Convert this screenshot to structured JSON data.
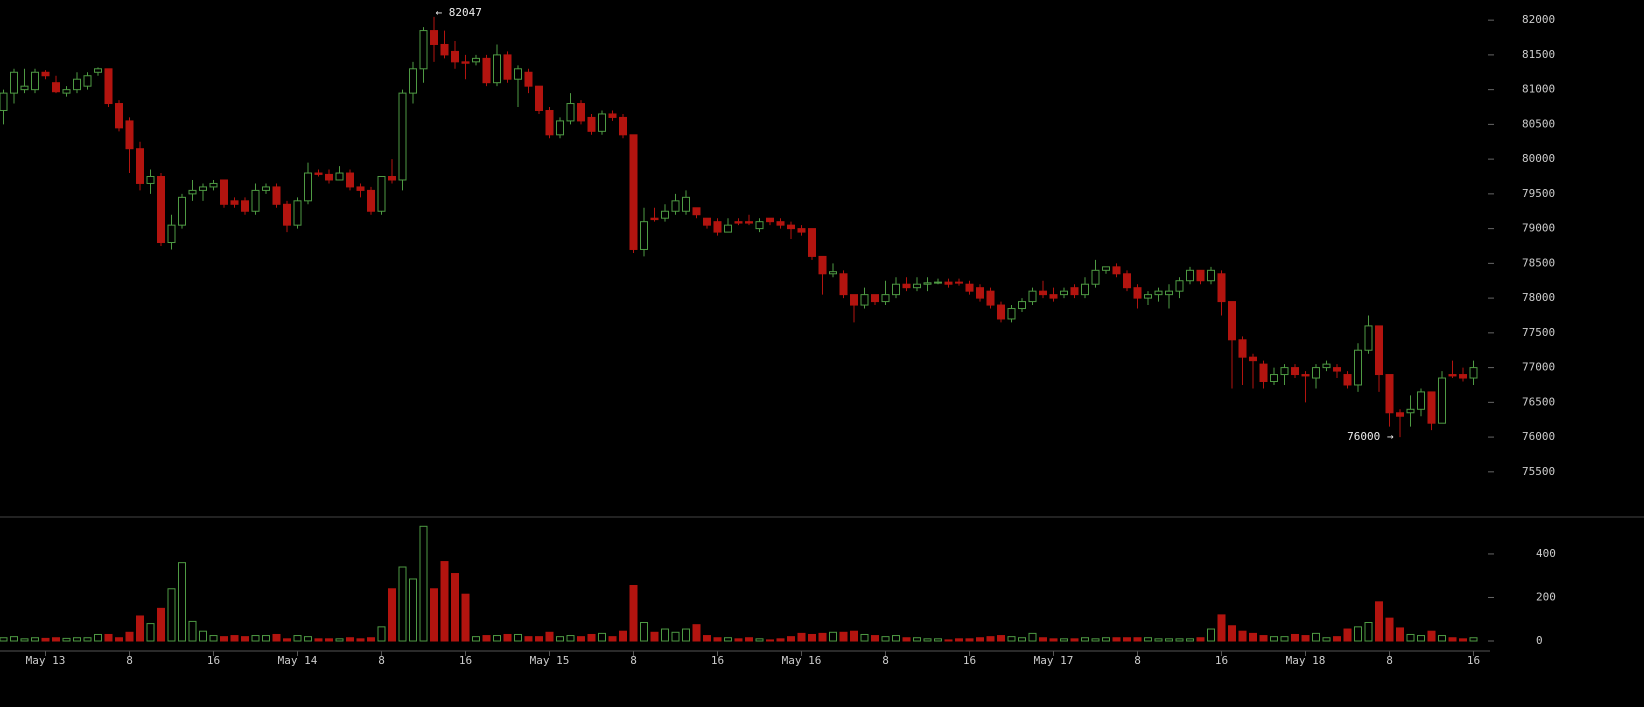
{
  "chart_data": {
    "type": "candlestick",
    "high_label": "← 82047",
    "low_label": "76000 →",
    "categories": [
      null,
      null,
      null,
      null,
      "May 13",
      null,
      null,
      null,
      null,
      null,
      null,
      null,
      "8",
      null,
      null,
      null,
      null,
      null,
      null,
      null,
      "16",
      null,
      null,
      null,
      null,
      null,
      null,
      null,
      "May 14",
      null,
      null,
      null,
      null,
      null,
      null,
      null,
      "8",
      null,
      null,
      null,
      null,
      null,
      null,
      null,
      "16",
      null,
      null,
      null,
      null,
      null,
      null,
      null,
      "May 15",
      null,
      null,
      null,
      null,
      null,
      null,
      null,
      "8",
      null,
      null,
      null,
      null,
      null,
      null,
      null,
      "16",
      null,
      null,
      null,
      null,
      null,
      null,
      null,
      "May 16",
      null,
      null,
      null,
      null,
      null,
      null,
      null,
      "8",
      null,
      null,
      null,
      null,
      null,
      null,
      null,
      "16",
      null,
      null,
      null,
      null,
      null,
      null,
      null,
      "May 17",
      null,
      null,
      null,
      null,
      null,
      null,
      null,
      "8",
      null,
      null,
      null,
      null,
      null,
      null,
      null,
      "16",
      null,
      null,
      null,
      null,
      null,
      null,
      null,
      "May 18",
      null,
      null,
      null,
      null,
      null,
      null,
      null,
      "8",
      null,
      null,
      null,
      null,
      null,
      null,
      null,
      "16"
    ],
    "open": [
      80700,
      80950,
      81000,
      81000,
      81250,
      81100,
      80950,
      81000,
      81050,
      81250,
      81300,
      80800,
      80550,
      80150,
      79650,
      79750,
      78800,
      79050,
      79500,
      79550,
      79600,
      79700,
      79400,
      79400,
      79250,
      79550,
      79600,
      79350,
      79050,
      79400,
      79800,
      79780,
      79700,
      79800,
      79600,
      79550,
      79250,
      79750,
      79700,
      80950,
      81300,
      81850,
      81650,
      81550,
      81400,
      81400,
      81450,
      81100,
      81500,
      81150,
      81250,
      81050,
      80700,
      80350,
      80550,
      80800,
      80600,
      80400,
      80650,
      80600,
      80350,
      78700,
      79150,
      79150,
      79250,
      79250,
      79300,
      79150,
      79100,
      78950,
      79100,
      79100,
      79000,
      79150,
      79100,
      79050,
      79000,
      79000,
      78600,
      78350,
      78350,
      78050,
      77900,
      78050,
      77950,
      78050,
      78200,
      78150,
      78200,
      78220,
      78230,
      78230,
      78200,
      78150,
      78100,
      77900,
      77700,
      77850,
      77950,
      78100,
      78050,
      78050,
      78150,
      78050,
      78200,
      78400,
      78450,
      78350,
      78150,
      78000,
      78050,
      78050,
      78100,
      78250,
      78400,
      78250,
      78350,
      77950,
      77400,
      77150,
      77050,
      76800,
      76900,
      77000,
      76900,
      76850,
      77000,
      77000,
      76900,
      76750,
      77250,
      77600,
      76900,
      76350,
      76350,
      76400,
      76650,
      76200,
      76900,
      76900,
      76850
    ],
    "high": [
      81000,
      81300,
      81300,
      81300,
      81280,
      81200,
      81050,
      81250,
      81250,
      81320,
      81300,
      80850,
      80600,
      80250,
      79850,
      79800,
      79200,
      79500,
      79700,
      79650,
      79700,
      79700,
      79450,
      79450,
      79650,
      79650,
      79650,
      79400,
      79450,
      79950,
      79850,
      79850,
      79900,
      79850,
      79650,
      79600,
      79750,
      80000,
      81000,
      81400,
      81900,
      82047,
      81850,
      81700,
      81500,
      81500,
      81500,
      81650,
      81550,
      81350,
      81300,
      81050,
      80750,
      80600,
      80950,
      80850,
      80650,
      80700,
      80700,
      80650,
      80350,
      79300,
      79300,
      79350,
      79500,
      79550,
      79300,
      79150,
      79150,
      79150,
      79150,
      79200,
      79150,
      79150,
      79150,
      79100,
      79050,
      79000,
      78600,
      78500,
      78400,
      78050,
      78150,
      78050,
      78250,
      78300,
      78300,
      78300,
      78300,
      78280,
      78280,
      78280,
      78250,
      78200,
      78150,
      77950,
      77900,
      78000,
      78150,
      78250,
      78150,
      78150,
      78200,
      78300,
      78550,
      78450,
      78500,
      78400,
      78200,
      78100,
      78150,
      78200,
      78300,
      78450,
      78400,
      78450,
      78400,
      77950,
      77450,
      77200,
      77100,
      77000,
      77050,
      77050,
      76950,
      77050,
      77100,
      77050,
      76950,
      77350,
      77750,
      77600,
      76900,
      76400,
      76600,
      76700,
      76650,
      76950,
      77100,
      77000,
      77100
    ],
    "low": [
      80500,
      80800,
      80950,
      80950,
      81150,
      80950,
      80900,
      80950,
      81000,
      81200,
      80750,
      80400,
      79800,
      79550,
      79500,
      78750,
      78700,
      79000,
      79400,
      79400,
      79550,
      79300,
      79300,
      79200,
      79200,
      79500,
      79300,
      78950,
      79000,
      79350,
      79750,
      79650,
      79700,
      79550,
      79450,
      79200,
      79200,
      79650,
      79550,
      80800,
      81100,
      81400,
      81450,
      81300,
      81150,
      81350,
      81050,
      81050,
      81100,
      80750,
      80950,
      80650,
      80300,
      80300,
      80500,
      80500,
      80350,
      80350,
      80550,
      80300,
      78650,
      78600,
      79100,
      79100,
      79200,
      79200,
      79150,
      79000,
      78900,
      78950,
      79050,
      79050,
      78950,
      79050,
      79000,
      78850,
      78900,
      78550,
      78050,
      78300,
      78000,
      77650,
      77850,
      77900,
      77900,
      78000,
      78100,
      78100,
      78100,
      78200,
      78150,
      78180,
      78050,
      77950,
      77850,
      77650,
      77650,
      77800,
      77900,
      78000,
      77950,
      78000,
      78000,
      78000,
      78150,
      78350,
      78300,
      78100,
      77850,
      77900,
      77950,
      77850,
      78000,
      78200,
      78200,
      78200,
      77750,
      76700,
      76750,
      76700,
      76700,
      76750,
      76750,
      76850,
      76500,
      76700,
      76950,
      76850,
      76700,
      76650,
      77200,
      76650,
      76150,
      76000,
      76150,
      76300,
      76100,
      76200,
      76850,
      76800,
      76750
    ],
    "close": [
      80950,
      81250,
      81050,
      81250,
      81200,
      80970,
      81000,
      81150,
      81200,
      81300,
      80800,
      80450,
      80150,
      79650,
      79750,
      78800,
      79050,
      79450,
      79550,
      79600,
      79650,
      79350,
      79350,
      79250,
      79550,
      79600,
      79350,
      79050,
      79400,
      79800,
      79780,
      79700,
      79800,
      79600,
      79550,
      79250,
      79750,
      79700,
      80950,
      81300,
      81850,
      81650,
      81500,
      81400,
      81380,
      81450,
      81100,
      81500,
      81150,
      81300,
      81050,
      80700,
      80350,
      80550,
      80800,
      80550,
      80400,
      80650,
      80600,
      80350,
      78700,
      79100,
      79130,
      79250,
      79400,
      79450,
      79200,
      79050,
      78950,
      79050,
      79080,
      79080,
      79100,
      79100,
      79050,
      79000,
      78950,
      78600,
      78350,
      78380,
      78050,
      77900,
      78050,
      77950,
      78050,
      78200,
      78150,
      78200,
      78220,
      78230,
      78200,
      78220,
      78100,
      78000,
      77900,
      77700,
      77850,
      77950,
      78100,
      78050,
      78000,
      78100,
      78050,
      78200,
      78400,
      78450,
      78350,
      78150,
      78000,
      78050,
      78100,
      78100,
      78250,
      78400,
      78250,
      78400,
      77950,
      77400,
      77150,
      77100,
      76800,
      76900,
      77000,
      76900,
      76880,
      77000,
      77050,
      76950,
      76750,
      77250,
      77600,
      76900,
      76350,
      76300,
      76400,
      76650,
      76200,
      76850,
      76880,
      76850,
      77000
    ],
    "volume": [
      15,
      20,
      10,
      15,
      12,
      15,
      12,
      15,
      15,
      30,
      30,
      15,
      40,
      115,
      80,
      150,
      240,
      360,
      90,
      45,
      25,
      20,
      25,
      20,
      25,
      25,
      30,
      10,
      25,
      20,
      10,
      10,
      10,
      15,
      10,
      15,
      65,
      240,
      340,
      285,
      527,
      240,
      365,
      310,
      215,
      20,
      25,
      25,
      30,
      30,
      20,
      20,
      40,
      20,
      25,
      20,
      30,
      35,
      20,
      45,
      255,
      85,
      40,
      55,
      40,
      55,
      75,
      25,
      15,
      15,
      10,
      15,
      10,
      5,
      10,
      20,
      35,
      30,
      35,
      40,
      40,
      45,
      30,
      25,
      20,
      25,
      15,
      15,
      10,
      10,
      5,
      10,
      10,
      15,
      20,
      25,
      20,
      15,
      35,
      15,
      10,
      10,
      10,
      15,
      10,
      15,
      15,
      15,
      15,
      15,
      10,
      10,
      10,
      10,
      15,
      55,
      120,
      70,
      45,
      35,
      25,
      20,
      20,
      30,
      25,
      35,
      15,
      20,
      55,
      65,
      85,
      180,
      105,
      60,
      30,
      25,
      45,
      25,
      15,
      10,
      15
    ],
    "up_color": "#4e9a43",
    "down_color": "#b3140f",
    "ylim": [
      74850,
      82290
    ],
    "yticks": [
      75500,
      76000,
      76500,
      77000,
      77500,
      78000,
      78500,
      79000,
      79500,
      80000,
      80500,
      81000,
      81500,
      82000
    ],
    "volume_ylim": [
      0,
      556
    ],
    "volume_yticks": [
      0,
      200,
      400
    ]
  }
}
